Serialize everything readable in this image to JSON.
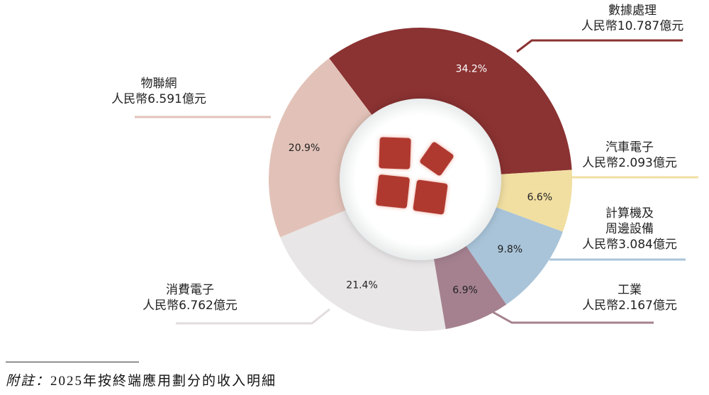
{
  "chart_data": {
    "type": "pie",
    "variant": "donut",
    "currency_prefix": "人民幣",
    "unit_suffix": "億元",
    "start_category": "數據處理",
    "direction": "clockwise",
    "slices": [
      {
        "label": "數據處理",
        "amount": "10.787",
        "percent": 34.2,
        "percent_label": "34.2%",
        "color": "#8b3232"
      },
      {
        "label": "汽車電子",
        "amount": "2.093",
        "percent": 6.6,
        "percent_label": "6.6%",
        "color": "#f1dfa2"
      },
      {
        "label_lines": [
          "計算機及",
          "周邊設備"
        ],
        "amount": "3.084",
        "percent": 9.8,
        "percent_label": "9.8%",
        "color": "#a9c4d9"
      },
      {
        "label": "工業",
        "amount": "2.167",
        "percent": 6.9,
        "percent_label": "6.9%",
        "color": "#a5818f"
      },
      {
        "label": "消費電子",
        "amount": "6.762",
        "percent": 21.4,
        "percent_label": "21.4%",
        "color": "#e8e6e6"
      },
      {
        "label": "物聯網",
        "amount": "6.591",
        "percent": 20.9,
        "percent_label": "20.9%",
        "color": "#e2c2b8"
      }
    ],
    "value_labels": [
      "人民幣10.787億元",
      "人民幣2.093億元",
      "人民幣3.084億元",
      "人民幣2.167億元",
      "人民幣6.762億元",
      "人民幣6.591億元"
    ],
    "center_icon": "four-tiles-icon",
    "center_icon_color": "#b0392f"
  },
  "footnote": {
    "prefix": "附註：",
    "text": "2025年按終端應用劃分的收入明細"
  }
}
